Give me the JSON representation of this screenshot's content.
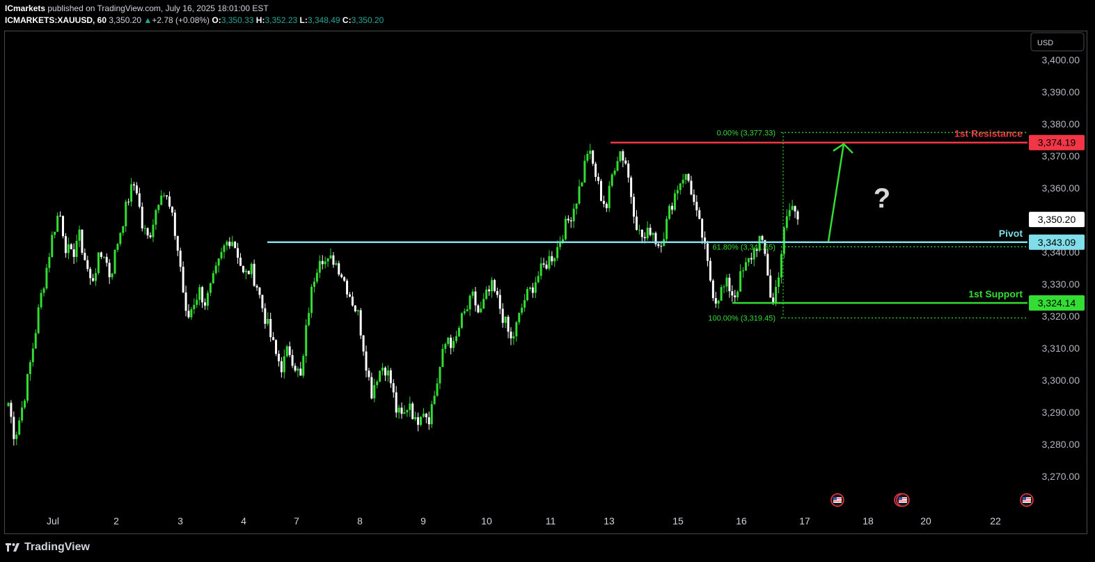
{
  "header": {
    "publisher": "ICmarkets",
    "published_text": "published on TradingView.com, July 16, 2025 18:01:00 EST",
    "symbol": "ICMARKETS:XAUUSD, 60",
    "last": "3,350.20",
    "change_arrow": "▲",
    "change": "+2.78 (+0.08%)",
    "o_label": "O:",
    "o": "3,350.33",
    "h_label": "H:",
    "h": "3,352.23",
    "l_label": "L:",
    "l": "3,348.49",
    "c_label": "C:",
    "c": "3,350.20"
  },
  "footer": {
    "brand": "TradingView"
  },
  "colors": {
    "up": "#26a69a",
    "candle_up": "#33dd33",
    "candle_down": "#ffffff",
    "resistance": "#f23645",
    "pivot": "#80deea",
    "support": "#33dd33"
  },
  "chart_data": {
    "type": "candlestick",
    "currency": "USD",
    "ylim": [
      3262,
      3404
    ],
    "y_ticks": [
      3400,
      3390,
      3380,
      3370,
      3360,
      3350,
      3340,
      3330,
      3320,
      3310,
      3300,
      3290,
      3280,
      3270
    ],
    "y_tick_labels": [
      "3,400.00",
      "3,390.00",
      "3,380.00",
      "3,370.00",
      "3,360.00",
      "3,350.00",
      "3,340.00",
      "3,330.00",
      "3,320.00",
      "3,310.00",
      "3,300.00",
      "3,290.00",
      "3,280.00",
      "3,270.00"
    ],
    "x_tick_labels": [
      "Jul",
      "2",
      "3",
      "4",
      "7",
      "8",
      "9",
      "10",
      "11",
      "13",
      "15",
      "16",
      "17",
      "18",
      "20",
      "22"
    ],
    "last_price": 3350.2,
    "last_price_label": "3,350.20",
    "levels": [
      {
        "name": "1st Resistance",
        "value": 3374.19,
        "label": "3,374.19",
        "color": "#f23645"
      },
      {
        "name": "Pivot",
        "value": 3343.09,
        "label": "3,343.09",
        "color": "#80deea"
      },
      {
        "name": "1st Support",
        "value": 3324.14,
        "label": "3,324.14",
        "color": "#33dd33"
      }
    ],
    "fibonacci": [
      {
        "label": "0.00% (3,377.33)",
        "value": 3377.33
      },
      {
        "label": "61.80% (3,341.65)",
        "value": 3341.65
      },
      {
        "label": "100.00% (3,319.45)",
        "value": 3319.45
      }
    ],
    "annotation": "?",
    "path": [
      3293,
      3282,
      3290,
      3300,
      3312,
      3325,
      3335,
      3346,
      3353,
      3342,
      3338,
      3346,
      3338,
      3330,
      3337,
      3340,
      3332,
      3342,
      3350,
      3358,
      3362,
      3348,
      3344,
      3352,
      3360,
      3356,
      3348,
      3336,
      3318,
      3324,
      3328,
      3324,
      3330,
      3336,
      3342,
      3345,
      3340,
      3332,
      3335,
      3330,
      3322,
      3315,
      3308,
      3304,
      3310,
      3305,
      3300,
      3320,
      3332,
      3340,
      3336,
      3338,
      3335,
      3330,
      3325,
      3320,
      3308,
      3296,
      3302,
      3305,
      3300,
      3290,
      3288,
      3294,
      3286,
      3292,
      3288,
      3296,
      3306,
      3314,
      3310,
      3318,
      3322,
      3326,
      3320,
      3326,
      3329,
      3324,
      3318,
      3312,
      3318,
      3325,
      3328,
      3332,
      3335,
      3338,
      3340,
      3346,
      3350,
      3355,
      3362,
      3372,
      3366,
      3358,
      3354,
      3366,
      3372,
      3368,
      3356,
      3346,
      3344,
      3348,
      3342,
      3346,
      3354,
      3360,
      3364,
      3362,
      3352,
      3345,
      3334,
      3325,
      3328,
      3330,
      3326,
      3332,
      3336,
      3340,
      3344,
      3338,
      3322,
      3334,
      3348,
      3355,
      3350
    ]
  }
}
